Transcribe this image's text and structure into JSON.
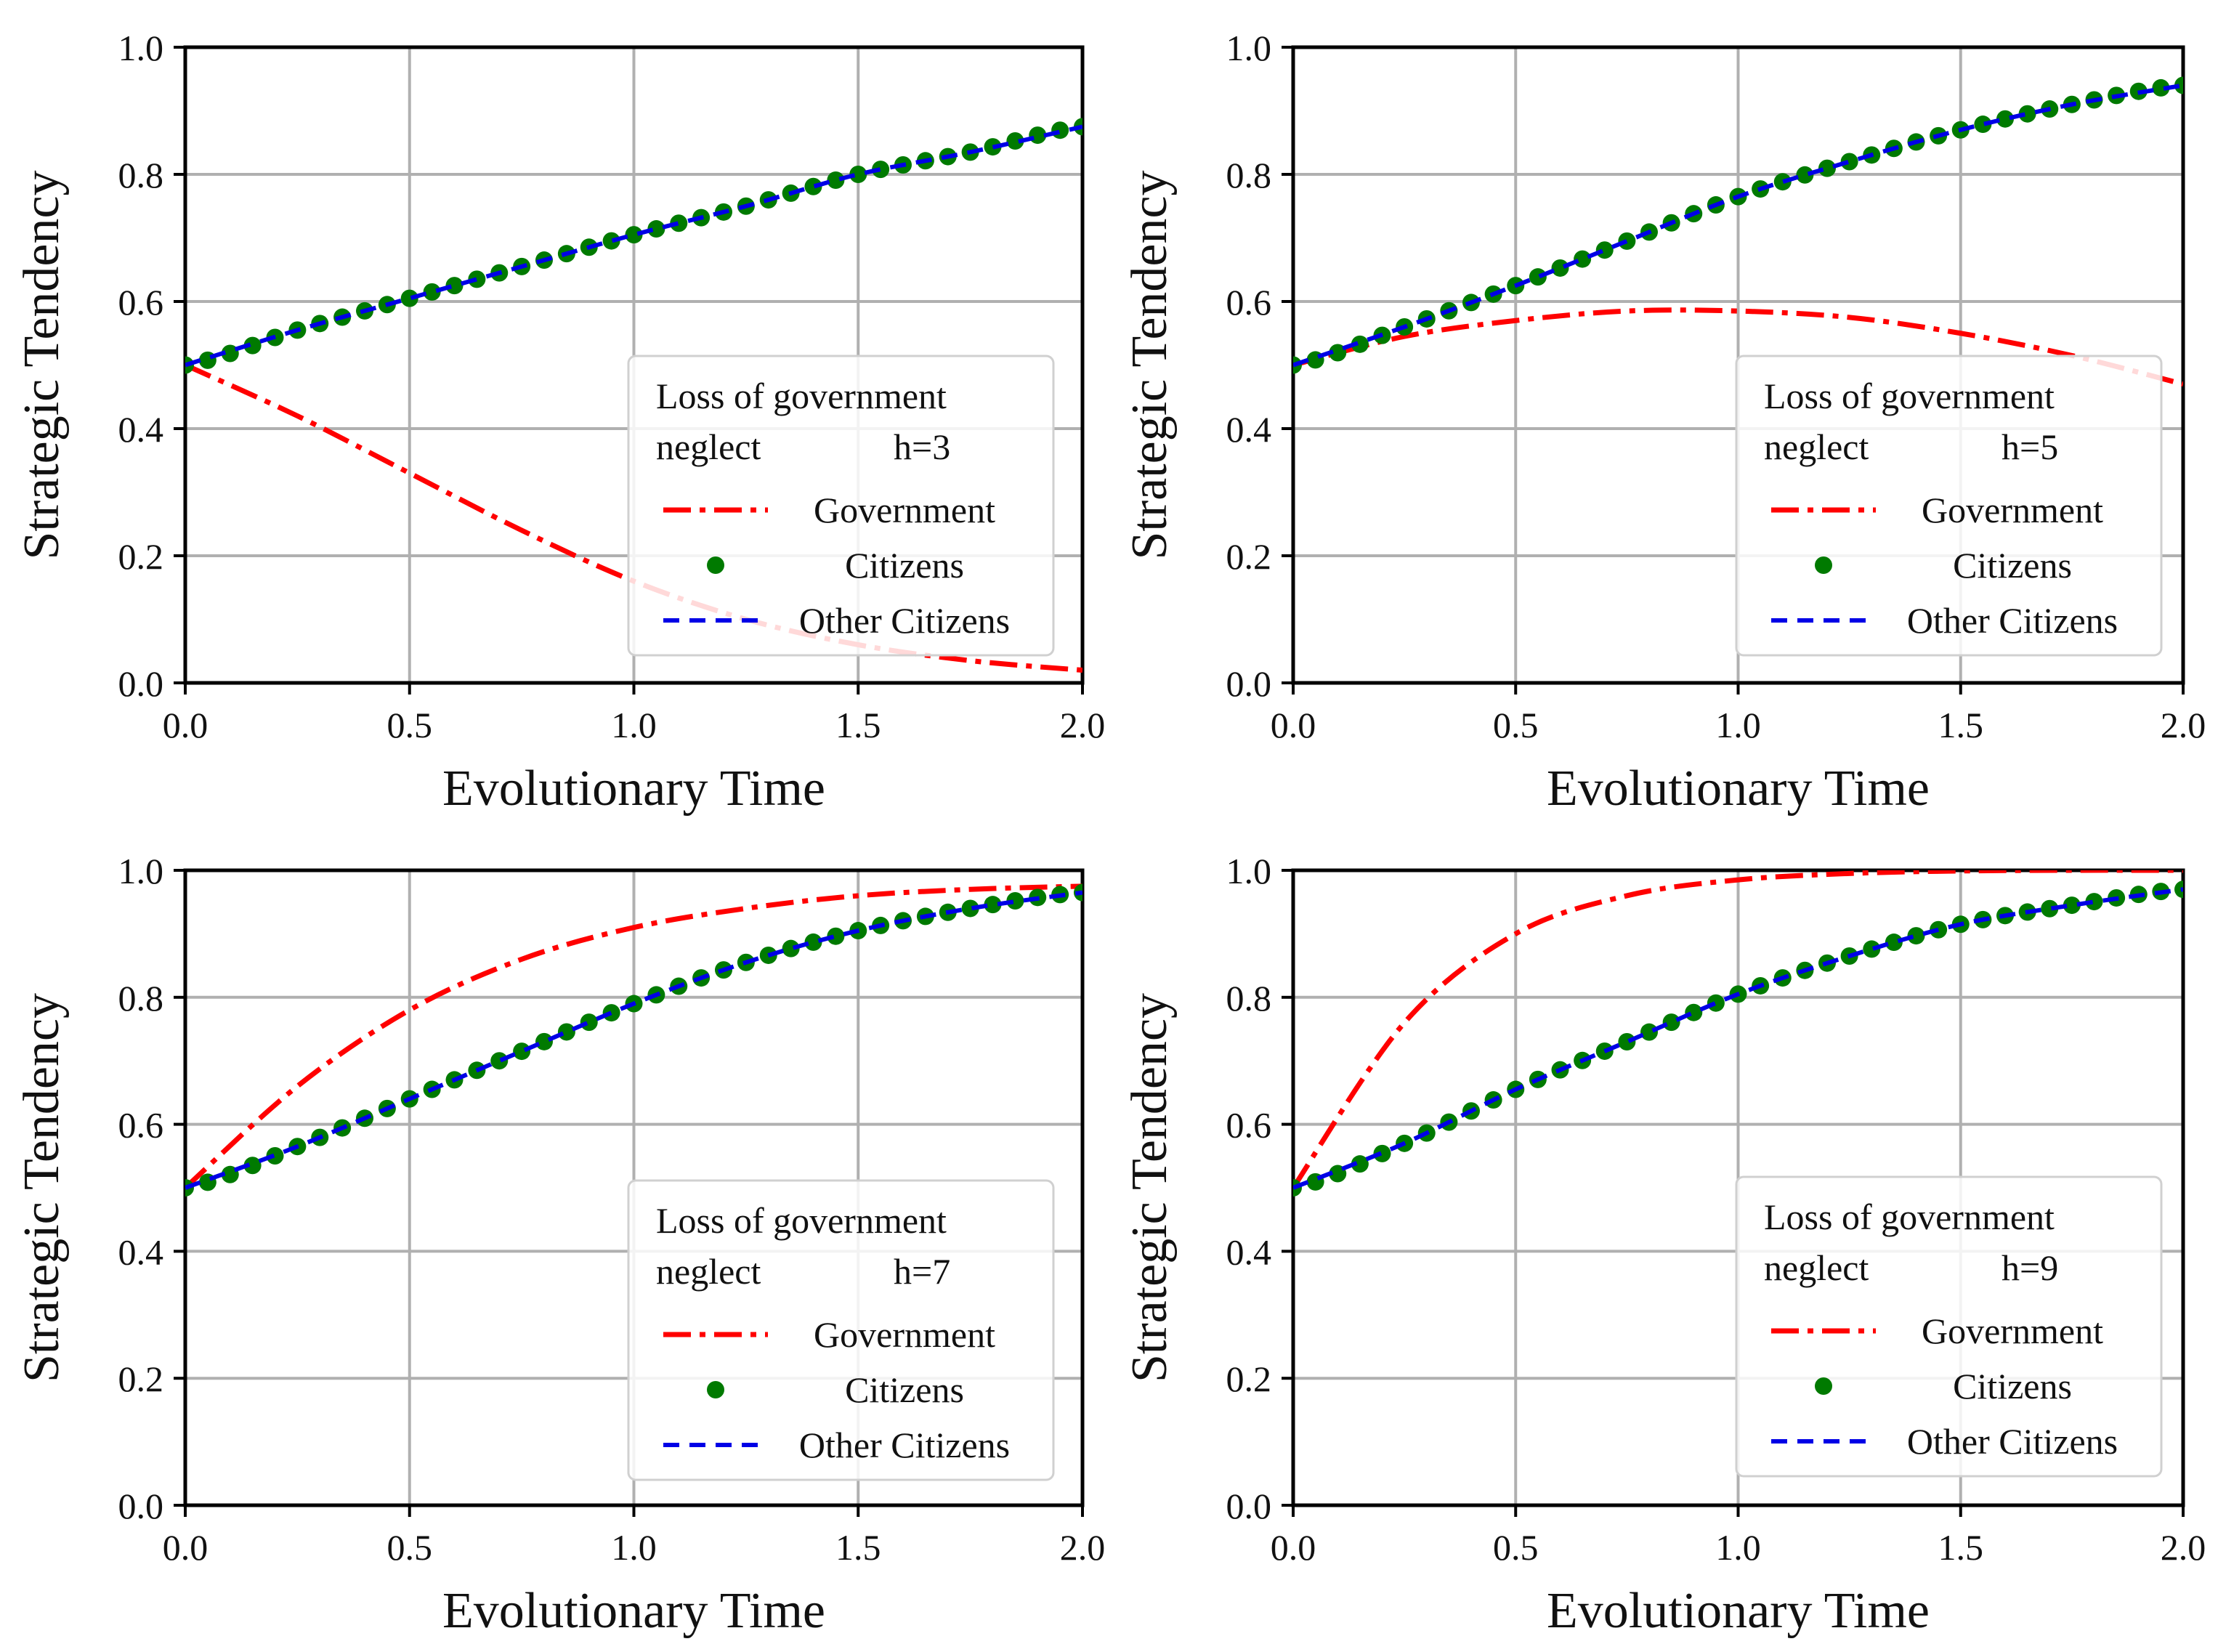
{
  "colors": {
    "government": "#ff0000",
    "citizens": "#007a00",
    "other_citizens": "#0000e6",
    "grid": "#b0b0b0",
    "axes": "#000000"
  },
  "chart_data": [
    {
      "type": "line",
      "xlabel": "Evolutionary Time",
      "ylabel": "Strategic Tendency",
      "xlim": [
        0,
        2
      ],
      "ylim": [
        0,
        1
      ],
      "xticks": [
        "0.0",
        "0.5",
        "1.0",
        "1.5",
        "2.0"
      ],
      "yticks": [
        "0.0",
        "0.2",
        "0.4",
        "0.6",
        "0.8",
        "1.0"
      ],
      "grid": true,
      "legend_position": "right",
      "legend": {
        "title_line1": "Loss of government",
        "title_line2_left": "neglect",
        "title_line2_right": "h=3"
      },
      "x": [
        0.0,
        0.25,
        0.5,
        0.75,
        1.0,
        1.25,
        1.5,
        1.75,
        2.0
      ],
      "series": [
        {
          "name": "Government",
          "style": "dash-dot",
          "values": [
            0.5,
            0.42,
            0.33,
            0.24,
            0.16,
            0.1,
            0.06,
            0.035,
            0.02
          ]
        },
        {
          "name": "Citizens",
          "style": "dots",
          "values": [
            0.5,
            0.555,
            0.605,
            0.655,
            0.705,
            0.75,
            0.8,
            0.835,
            0.875
          ]
        },
        {
          "name": "Other Citizens",
          "style": "dashed",
          "values": [
            0.5,
            0.555,
            0.605,
            0.655,
            0.705,
            0.75,
            0.8,
            0.835,
            0.875
          ]
        }
      ]
    },
    {
      "type": "line",
      "xlabel": "Evolutionary Time",
      "ylabel": "Strategic Tendency",
      "xlim": [
        0,
        2
      ],
      "ylim": [
        0,
        1
      ],
      "xticks": [
        "0.0",
        "0.5",
        "1.0",
        "1.5",
        "2.0"
      ],
      "yticks": [
        "0.0",
        "0.2",
        "0.4",
        "0.6",
        "0.8",
        "1.0"
      ],
      "grid": true,
      "legend_position": "right",
      "legend": {
        "title_line1": "Loss of government",
        "title_line2_left": "neglect",
        "title_line2_right": "h=5"
      },
      "x": [
        0.0,
        0.25,
        0.5,
        0.75,
        1.0,
        1.25,
        1.5,
        1.75,
        2.0
      ],
      "series": [
        {
          "name": "Government",
          "style": "dash-dot",
          "values": [
            0.5,
            0.545,
            0.57,
            0.585,
            0.585,
            0.575,
            0.55,
            0.515,
            0.47
          ]
        },
        {
          "name": "Citizens",
          "style": "dots",
          "values": [
            0.5,
            0.56,
            0.625,
            0.695,
            0.765,
            0.82,
            0.87,
            0.91,
            0.94
          ]
        },
        {
          "name": "Other Citizens",
          "style": "dashed",
          "values": [
            0.5,
            0.56,
            0.625,
            0.695,
            0.765,
            0.82,
            0.87,
            0.91,
            0.94
          ]
        }
      ]
    },
    {
      "type": "line",
      "xlabel": "Evolutionary Time",
      "ylabel": "Strategic Tendency",
      "xlim": [
        0,
        2
      ],
      "ylim": [
        0,
        1
      ],
      "xticks": [
        "0.0",
        "0.5",
        "1.0",
        "1.5",
        "2.0"
      ],
      "yticks": [
        "0.0",
        "0.2",
        "0.4",
        "0.6",
        "0.8",
        "1.0"
      ],
      "grid": true,
      "legend_position": "lower right",
      "legend": {
        "title_line1": "Loss of government",
        "title_line2_left": "neglect",
        "title_line2_right": "h=7"
      },
      "x": [
        0.0,
        0.25,
        0.5,
        0.75,
        1.0,
        1.25,
        1.5,
        1.75,
        2.0
      ],
      "series": [
        {
          "name": "Government",
          "style": "dash-dot",
          "values": [
            0.5,
            0.66,
            0.78,
            0.86,
            0.91,
            0.94,
            0.96,
            0.97,
            0.975
          ]
        },
        {
          "name": "Citizens",
          "style": "dots",
          "values": [
            0.5,
            0.565,
            0.64,
            0.715,
            0.79,
            0.855,
            0.905,
            0.94,
            0.965
          ]
        },
        {
          "name": "Other Citizens",
          "style": "dashed",
          "values": [
            0.5,
            0.565,
            0.64,
            0.715,
            0.79,
            0.855,
            0.905,
            0.94,
            0.965
          ]
        }
      ]
    },
    {
      "type": "line",
      "xlabel": "Evolutionary Time",
      "ylabel": "Strategic Tendency",
      "xlim": [
        0,
        2
      ],
      "ylim": [
        0,
        1
      ],
      "xticks": [
        "0.0",
        "0.5",
        "1.0",
        "1.5",
        "2.0"
      ],
      "yticks": [
        "0.0",
        "0.2",
        "0.4",
        "0.6",
        "0.8",
        "1.0"
      ],
      "grid": true,
      "legend_position": "lower right",
      "legend": {
        "title_line1": "Loss of government",
        "title_line2_left": "neglect",
        "title_line2_right": "h=9"
      },
      "x": [
        0.0,
        0.25,
        0.5,
        0.75,
        1.0,
        1.25,
        1.5,
        1.75,
        2.0
      ],
      "series": [
        {
          "name": "Government",
          "style": "dash-dot",
          "values": [
            0.5,
            0.76,
            0.9,
            0.96,
            0.985,
            0.995,
            0.999,
            1.0,
            1.0
          ]
        },
        {
          "name": "Citizens",
          "style": "dots",
          "values": [
            0.5,
            0.57,
            0.655,
            0.73,
            0.805,
            0.865,
            0.915,
            0.945,
            0.97
          ]
        },
        {
          "name": "Other Citizens",
          "style": "dashed",
          "values": [
            0.5,
            0.57,
            0.655,
            0.73,
            0.805,
            0.865,
            0.915,
            0.945,
            0.97
          ]
        }
      ]
    }
  ]
}
